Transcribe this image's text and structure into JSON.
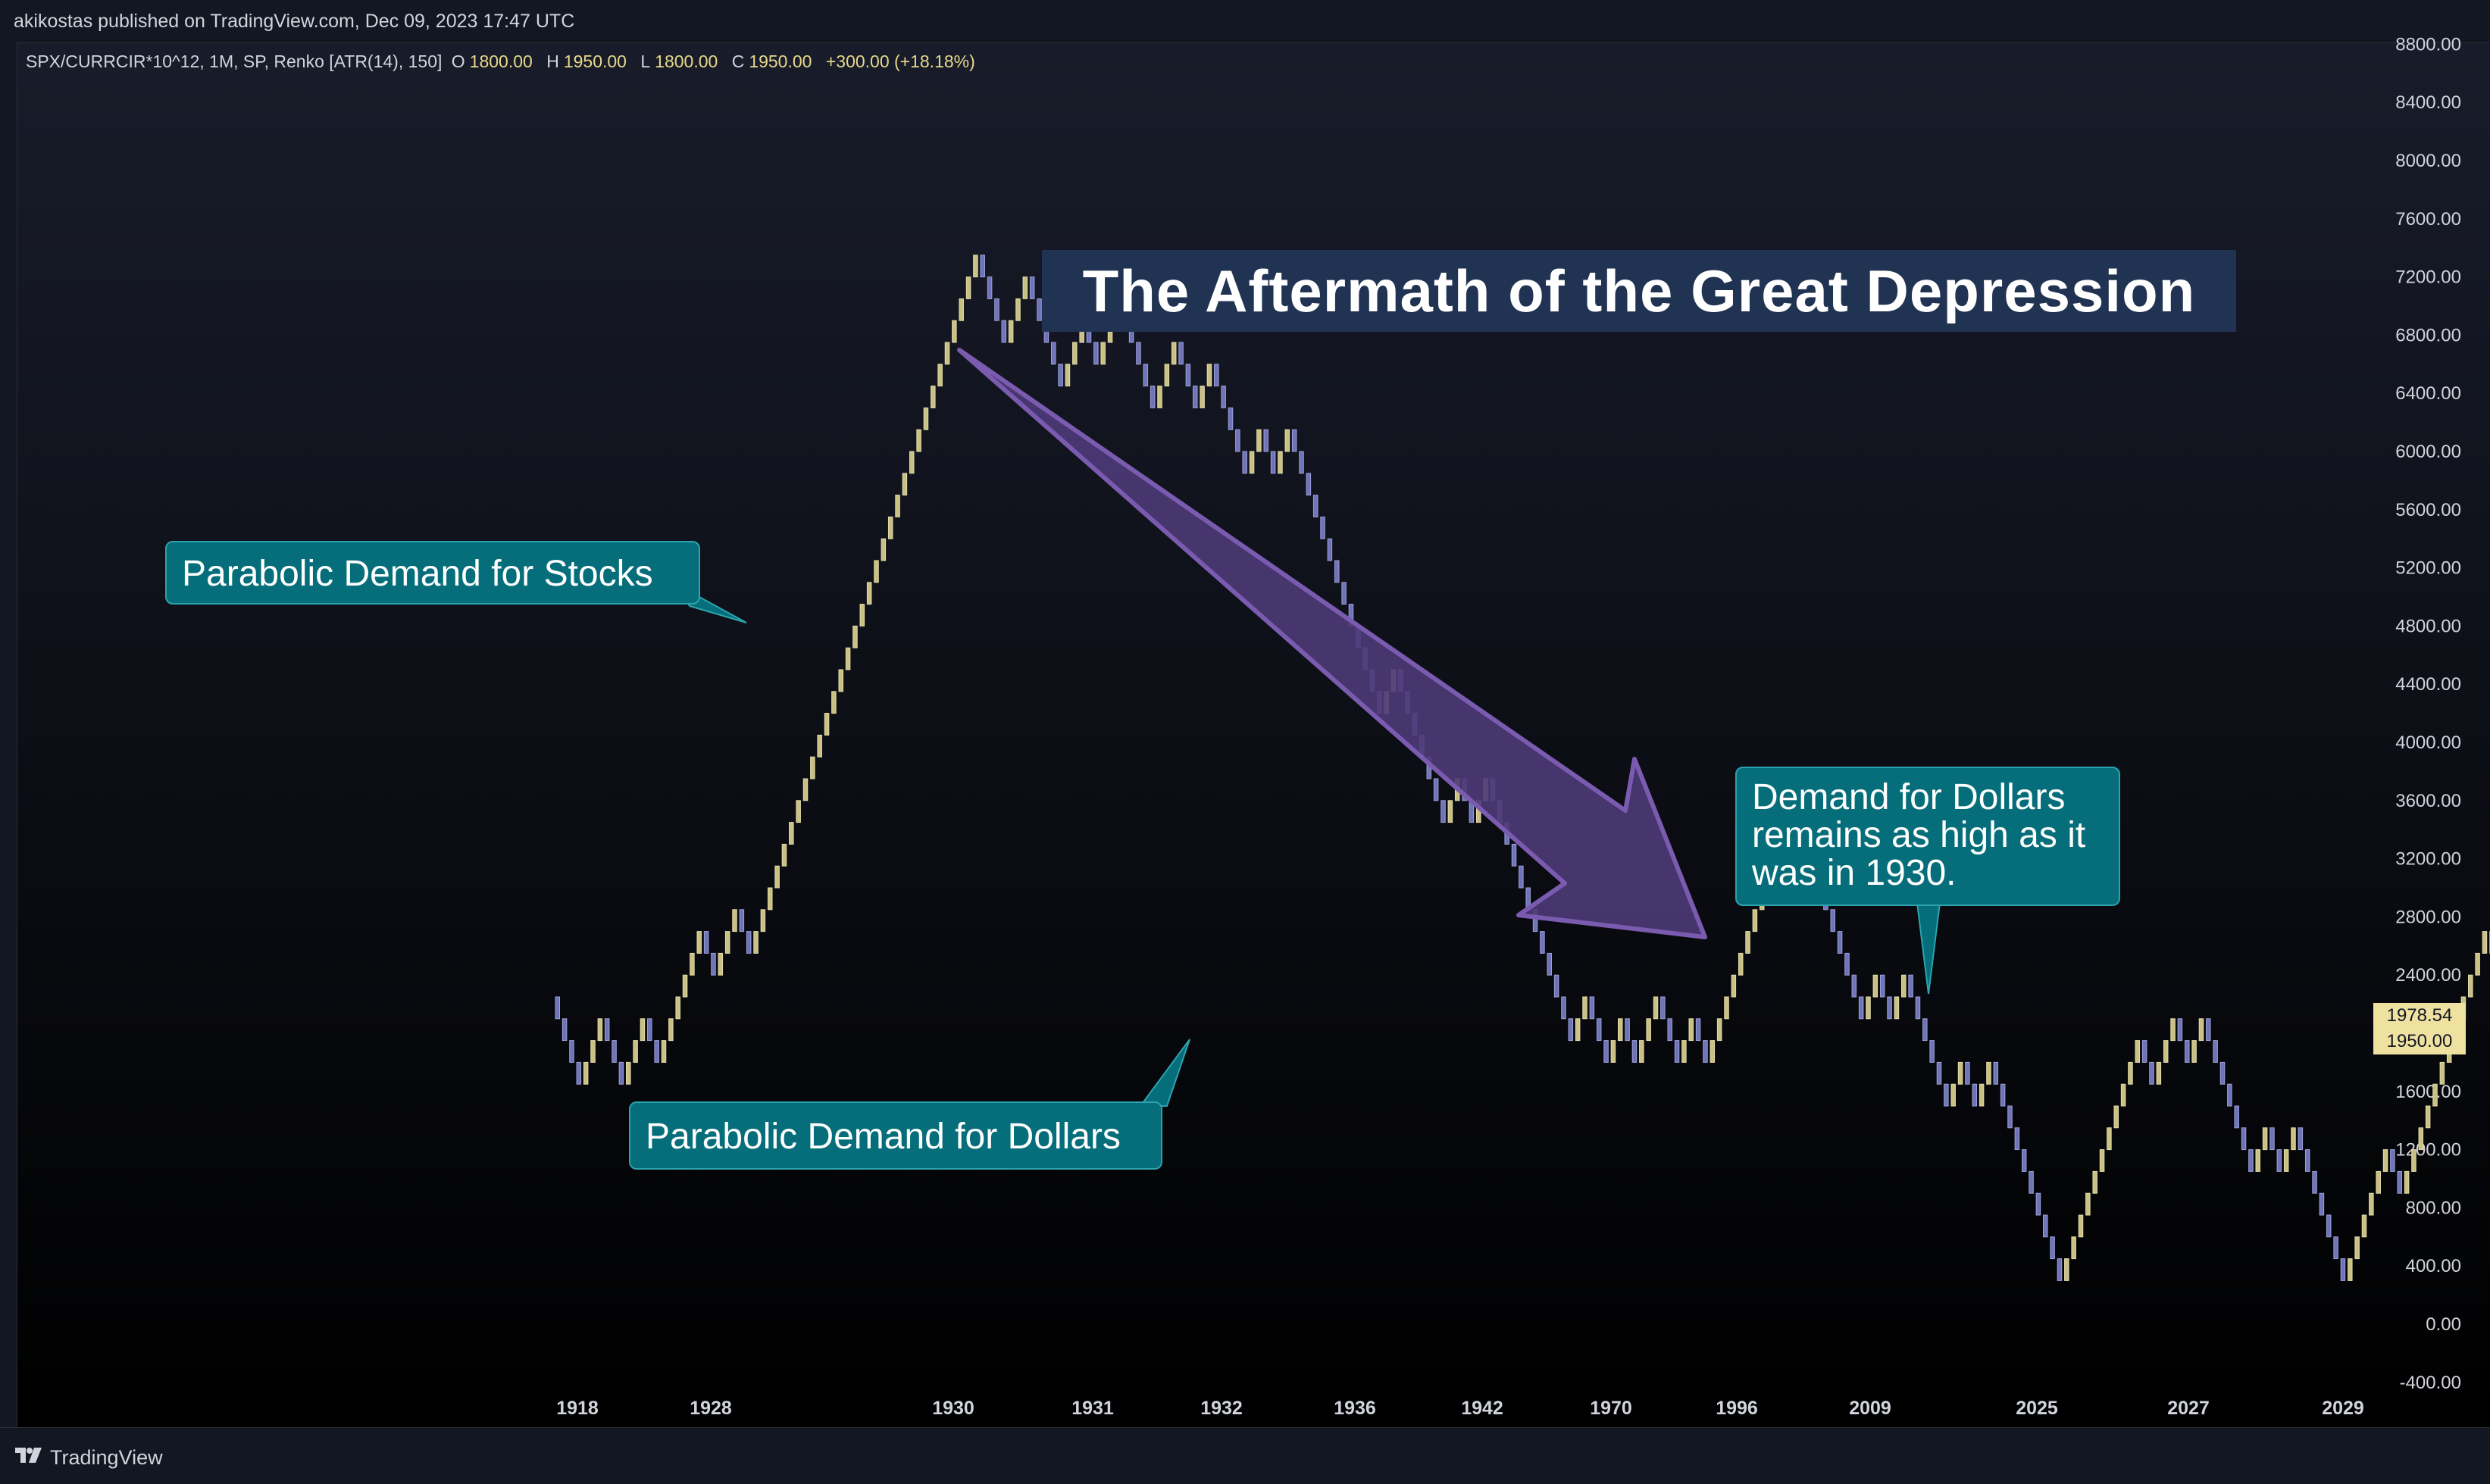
{
  "header": {
    "published_text": "akikostas published on TradingView.com, Dec 09, 2023 17:47 UTC"
  },
  "legend": {
    "symbol": "SPX/CURRCIR*10^12, 1M, SP, Renko [ATR(14), 150]",
    "open_label": "O",
    "open_value": "1800.00",
    "high_label": "H",
    "high_value": "1950.00",
    "low_label": "L",
    "low_value": "1800.00",
    "close_label": "C",
    "close_value": "1950.00",
    "change": "+300.00 (+18.18%)"
  },
  "title": "The Aftermath of the Great Depression",
  "annotations": {
    "stocks": "Parabolic Demand for Stocks",
    "dollars": "Parabolic Demand for Dollars",
    "dollars_high": [
      "Demand for Dollars",
      "remains as high as it",
      "was in 1930."
    ]
  },
  "price_tags": {
    "last": "1978.54",
    "close": "1950.00"
  },
  "footer": {
    "brand": "TradingView"
  },
  "colors": {
    "up": "#c9c083",
    "down": "#6f74b8",
    "arrow_fill": "#4e3a78",
    "arrow_stroke": "#7a5bb0",
    "callout_bg": "#056e7a"
  },
  "icons": {
    "logo": "tradingview-logo-icon"
  },
  "chart_data": {
    "type": "renko",
    "box_size": 150,
    "y_axis_ticks": [
      "8800.00",
      "8400.00",
      "8000.00",
      "7600.00",
      "7200.00",
      "6800.00",
      "6400.00",
      "6000.00",
      "5600.00",
      "5200.00",
      "4800.00",
      "4400.00",
      "4000.00",
      "3600.00",
      "3200.00",
      "2800.00",
      "2400.00",
      "2000.00",
      "1600.00",
      "1200.00",
      "800.00",
      "400.00",
      "0.00",
      "-400.00"
    ],
    "ylim": [
      -400,
      8800
    ],
    "x_axis_labels": [
      "1918",
      "1928",
      "1930",
      "1931",
      "1932",
      "1936",
      "1942",
      "1970",
      "1996",
      "2009",
      "2025",
      "2027",
      "2029"
    ],
    "direction_runs": [
      -4,
      3,
      -3,
      3,
      -2,
      6,
      -2,
      3,
      -2,
      32,
      -4,
      3,
      -5,
      3,
      -2,
      3,
      -5,
      3,
      -3,
      2,
      -2,
      -3,
      2,
      -2,
      2,
      -13,
      2,
      -7,
      2,
      -2,
      2,
      -12,
      2,
      -3,
      2,
      -2,
      3,
      -3,
      2,
      -2,
      3,
      2,
      3,
      4,
      -4,
      -6,
      2,
      -2,
      2,
      -6,
      2,
      -2,
      2,
      -6,
      -4,
      3,
      3,
      5,
      -2,
      3,
      -2,
      2,
      -4,
      -3,
      2,
      -2,
      2,
      -5,
      -2,
      2,
      2,
      2,
      -2,
      3,
      4,
      2,
      3,
      -4,
      -4,
      -2,
      3,
      -3,
      2,
      -3,
      2,
      -2,
      -3,
      2,
      3,
      2,
      2,
      -3,
      3,
      -3,
      2,
      3
    ],
    "last_close": 1950.0
  }
}
